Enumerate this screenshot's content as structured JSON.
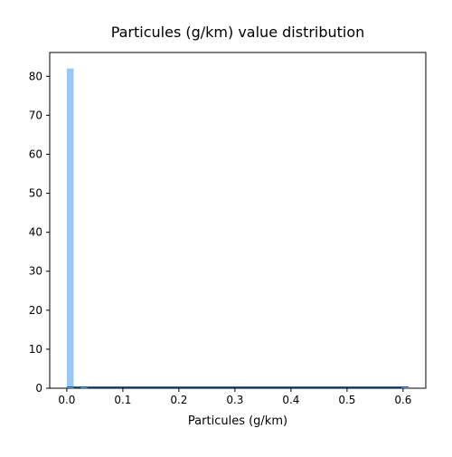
{
  "chart_data": {
    "type": "bar",
    "title": "Particules (g/km) value distribution",
    "xlabel": "Particules (g/km)",
    "ylabel": "",
    "xlim": [
      -0.0305,
      0.6405
    ],
    "ylim": [
      0,
      86.1
    ],
    "x_ticks": [
      "0.0",
      "0.1",
      "0.2",
      "0.3",
      "0.4",
      "0.5",
      "0.6"
    ],
    "y_ticks": [
      "0",
      "10",
      "20",
      "30",
      "40",
      "50",
      "60",
      "70",
      "80"
    ],
    "bar_color": "#9ac8f5",
    "line_color": "#1f5fa8",
    "bins": [
      {
        "x0": 0.0,
        "x1": 0.0122,
        "count": 82
      },
      {
        "x0": 0.0244,
        "x1": 0.0366,
        "count": 0.5
      },
      {
        "x0": 0.5978,
        "x1": 0.61,
        "count": 0.3
      }
    ],
    "density_line": [
      {
        "x": 0.0,
        "y": 0.3
      },
      {
        "x": 0.61,
        "y": 0.3
      }
    ]
  }
}
